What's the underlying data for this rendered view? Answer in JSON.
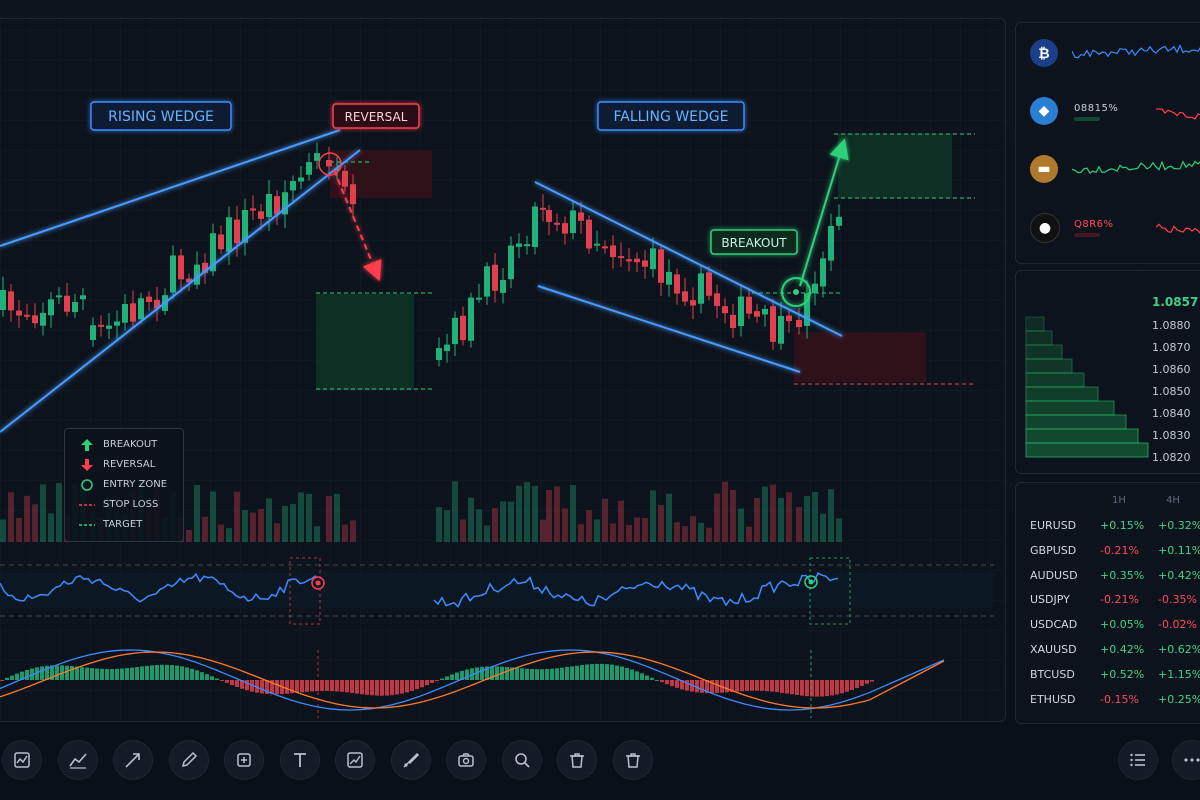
{
  "annotations": {
    "rising_wedge": "RISING WEDGE",
    "falling_wedge": "FALLING WEDGE",
    "reversal": "REVERSAL",
    "breakout": "BREAKOUT"
  },
  "legend": [
    {
      "label": "BREAKOUT",
      "icon": "arrow-up-icon",
      "color": "#2fd07a"
    },
    {
      "label": "REVERSAL",
      "icon": "arrow-down-icon",
      "color": "#ff3d4d"
    },
    {
      "label": "ENTRY ZONE",
      "icon": "circle-icon",
      "color": "#2fd07a"
    },
    {
      "label": "STOP LOSS",
      "icon": "dashed-line-red-icon",
      "color": "#ff3d4d"
    },
    {
      "label": "TARGET",
      "icon": "dashed-line-green-icon",
      "color": "#2fd07a"
    }
  ],
  "watchlist": [
    {
      "icon": "bitcoin-icon",
      "glyph": "₿",
      "color": "#1c3f8a",
      "pct": "",
      "trend": "up"
    },
    {
      "icon": "ethereum-icon",
      "glyph": "◆",
      "color": "#2a7fd4",
      "pct": "08815%",
      "trend": "down"
    },
    {
      "icon": "gold-icon",
      "glyph": "▬",
      "color": "#b07a2c",
      "pct": "",
      "trend": "up"
    },
    {
      "icon": "oil-drop-icon",
      "glyph": "●",
      "color": "#111111",
      "pct": "Q8R6%",
      "trend": "down"
    }
  ],
  "depth": {
    "last_price": "1.0857",
    "levels": [
      "1.0880",
      "1.0870",
      "1.0860",
      "1.0850",
      "1.0840",
      "1.0830",
      "1.0820"
    ]
  },
  "performance": {
    "headers": [
      "1H",
      "4H"
    ],
    "rows": [
      {
        "symbol": "EURUSD",
        "h1": "+0.15%",
        "h4": "+0.32%"
      },
      {
        "symbol": "GBPUSD",
        "h1": "-0.21%",
        "h4": "+0.11%"
      },
      {
        "symbol": "AUDUSD",
        "h1": "+0.35%",
        "h4": "+0.42%"
      },
      {
        "symbol": "USDJPY",
        "h1": "-0.21%",
        "h4": "-0.35%"
      },
      {
        "symbol": "USDCAD",
        "h1": "+0.05%",
        "h4": "-0.02%"
      },
      {
        "symbol": "XAUUSD",
        "h1": "+0.42%",
        "h4": "+0.62%"
      },
      {
        "symbol": "BTCUSD",
        "h1": "+0.52%",
        "h4": "+1.15%"
      },
      {
        "symbol": "ETHUSD",
        "h1": "-0.15%",
        "h4": "+0.25%"
      }
    ]
  },
  "toolbar": [
    {
      "name": "indicator-chart-tool",
      "icon": "chart-indicator-icon"
    },
    {
      "name": "trend-line-tool",
      "icon": "line-chart-icon"
    },
    {
      "name": "arrow-tool",
      "icon": "arrow-diagonal-icon"
    },
    {
      "name": "pencil-tool",
      "icon": "pencil-icon"
    },
    {
      "name": "add-shape-tool",
      "icon": "square-plus-icon"
    },
    {
      "name": "text-tool",
      "icon": "text-icon",
      "glyph": "T"
    },
    {
      "name": "pattern-tool",
      "icon": "pattern-icon"
    },
    {
      "name": "brush-tool",
      "icon": "brush-icon"
    },
    {
      "name": "snapshot-tool",
      "icon": "camera-icon"
    },
    {
      "name": "zoom-tool",
      "icon": "magnifier-icon"
    },
    {
      "name": "delete-tool",
      "icon": "trash-icon"
    },
    {
      "name": "delete-all-tool",
      "icon": "trash-icon"
    }
  ],
  "colors": {
    "bull": "#21b27a",
    "bear": "#e0404e",
    "wedge_line": "#3c8cff",
    "bg": "#0b111a"
  }
}
